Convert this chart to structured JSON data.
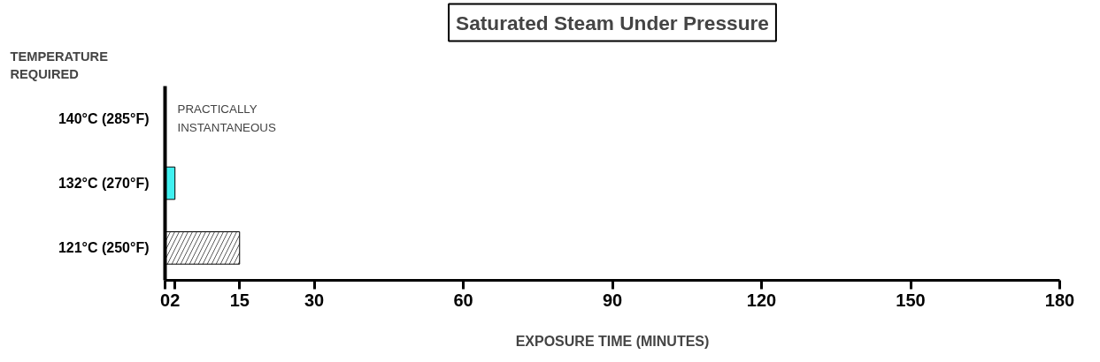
{
  "chart_data": {
    "type": "bar",
    "orientation": "horizontal",
    "title": "Saturated Steam Under Pressure",
    "ylabel": "TEMPERATURE REQUIRED",
    "xlabel": "EXPOSURE TIME (MINUTES)",
    "categories": [
      "140°C (285°F)",
      "132°C (270°F)",
      "121°C (250°F)"
    ],
    "values": [
      0,
      2,
      15
    ],
    "colors": [
      "#000000",
      "#40f0f0",
      "#ffffff"
    ],
    "xlim": [
      0,
      180
    ],
    "xticks": [
      0,
      2,
      15,
      30,
      60,
      90,
      120,
      150,
      180
    ],
    "annotations": [
      {
        "text": "PRACTICALLY INSTANTANEOUS",
        "x": 0,
        "y": "140°C (285°F)"
      }
    ],
    "grid": false
  }
}
